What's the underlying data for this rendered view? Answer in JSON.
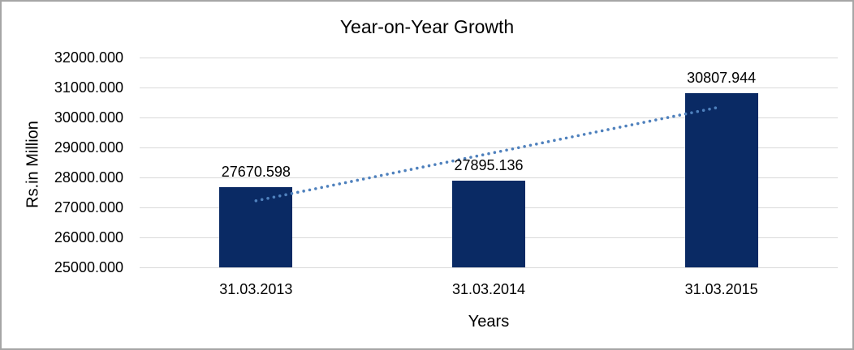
{
  "chart_data": {
    "type": "bar",
    "title": "Year-on-Year Growth",
    "xlabel": "Years",
    "ylabel": "Rs.in Million",
    "categories": [
      "31.03.2013",
      "31.03.2014",
      "31.03.2015"
    ],
    "values": [
      27670.598,
      27895.136,
      30807.944
    ],
    "data_labels": [
      "27670.598",
      "27895.136",
      "30807.944"
    ],
    "ylim": [
      25000,
      32000
    ],
    "ytick_step": 1000,
    "ytick_labels": [
      "25000.000",
      "26000.000",
      "27000.000",
      "28000.000",
      "29000.000",
      "30000.000",
      "31000.000",
      "32000.000"
    ],
    "grid": true,
    "legend": "none",
    "trendline": {
      "type": "linear",
      "style": "dotted"
    },
    "colors": {
      "bar": "#0a2a64",
      "trendline": "#4f81bd",
      "gridline": "#d9d9d9",
      "text": "#000000",
      "chart_border": "#a6a6a6",
      "background": "#ffffff"
    }
  }
}
